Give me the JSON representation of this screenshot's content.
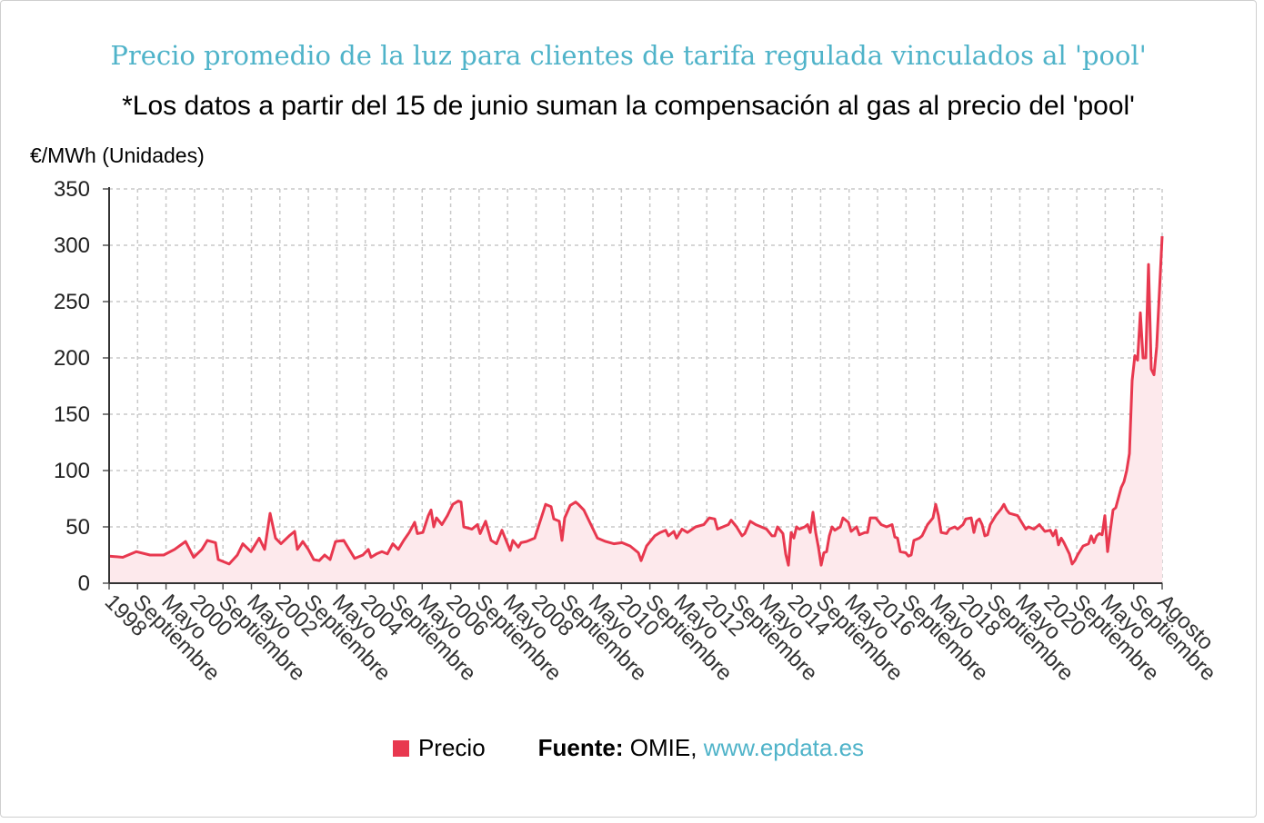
{
  "title": "Precio promedio de la luz para clientes de tarifa regulada vinculados al 'pool'",
  "subtitle": "*Los datos a partir del 15 de junio suman la compensación al gas al precio del 'pool'",
  "colors": {
    "line": "#e8384f",
    "area": "#fde9ec",
    "title": "#4fb3c9",
    "grid": "#c8c8c8"
  },
  "legend": {
    "series_label": "Precio",
    "source_label": "Fuente:",
    "source_name": "OMIE,",
    "source_url": "www.epdata.es"
  },
  "chart_data": {
    "type": "area",
    "title": "Precio promedio de la luz para clientes de tarifa regulada vinculados al 'pool'",
    "ylabel": "€/MWh (Unidades)",
    "ylim": [
      0,
      350
    ],
    "yticks": [
      0,
      50,
      100,
      150,
      200,
      250,
      300,
      350
    ],
    "grid": true,
    "legend_position": "bottom",
    "x_start": "1998-01",
    "x_end": "2022-08",
    "x_tick_labels": [
      "1998",
      "Septiembre",
      "Mayo",
      "2000",
      "Septiembre",
      "Mayo",
      "2002",
      "Septiembre",
      "Mayo",
      "2004",
      "Septiembre",
      "Mayo",
      "2006",
      "Septiembre",
      "Mayo",
      "2008",
      "Septiembre",
      "Mayo",
      "2010",
      "Septiembre",
      "Mayo",
      "2012",
      "Septiembre",
      "Mayo",
      "2014",
      "Septiembre",
      "Mayo",
      "2016",
      "Septiembre",
      "Mayo",
      "2018",
      "Septiembre",
      "Mayo",
      "2020",
      "Septiembre",
      "Mayo",
      "Septiembre",
      "Agosto"
    ],
    "series": [
      {
        "name": "Precio",
        "anchors": [
          [
            0,
            24
          ],
          [
            5,
            23
          ],
          [
            10,
            28
          ],
          [
            15,
            25
          ],
          [
            20,
            25
          ],
          [
            24,
            30
          ],
          [
            28,
            37
          ],
          [
            31,
            23
          ],
          [
            34,
            30
          ],
          [
            36,
            38
          ],
          [
            39,
            36
          ],
          [
            40,
            21
          ],
          [
            44,
            17
          ],
          [
            47,
            25
          ],
          [
            49,
            35
          ],
          [
            52,
            28
          ],
          [
            55,
            40
          ],
          [
            57,
            30
          ],
          [
            59,
            62
          ],
          [
            61,
            40
          ],
          [
            63,
            35
          ],
          [
            66,
            42
          ],
          [
            68,
            46
          ],
          [
            69,
            30
          ],
          [
            71,
            37
          ],
          [
            73,
            30
          ],
          [
            75,
            21
          ],
          [
            77,
            20
          ],
          [
            79,
            25
          ],
          [
            81,
            21
          ],
          [
            83,
            37
          ],
          [
            86,
            38
          ],
          [
            88,
            30
          ],
          [
            90,
            22
          ],
          [
            93,
            25
          ],
          [
            95,
            30
          ],
          [
            96,
            23
          ],
          [
            98,
            26
          ],
          [
            100,
            28
          ],
          [
            102,
            26
          ],
          [
            104,
            35
          ],
          [
            106,
            30
          ],
          [
            108,
            38
          ],
          [
            110,
            45
          ],
          [
            112,
            54
          ],
          [
            113,
            44
          ],
          [
            115,
            45
          ],
          [
            117,
            60
          ],
          [
            118,
            65
          ],
          [
            119,
            50
          ],
          [
            120,
            58
          ],
          [
            122,
            52
          ],
          [
            124,
            60
          ],
          [
            126,
            70
          ],
          [
            128,
            73
          ],
          [
            129,
            72
          ],
          [
            130,
            50
          ],
          [
            133,
            48
          ],
          [
            135,
            52
          ],
          [
            136,
            44
          ],
          [
            138,
            55
          ],
          [
            140,
            38
          ],
          [
            142,
            35
          ],
          [
            144,
            47
          ],
          [
            146,
            35
          ],
          [
            147,
            29
          ],
          [
            148,
            38
          ],
          [
            150,
            32
          ],
          [
            151,
            36
          ],
          [
            153,
            37
          ],
          [
            156,
            40
          ],
          [
            158,
            55
          ],
          [
            160,
            70
          ],
          [
            162,
            68
          ],
          [
            163,
            57
          ],
          [
            165,
            55
          ],
          [
            166,
            38
          ],
          [
            167,
            58
          ],
          [
            169,
            69
          ],
          [
            171,
            72
          ],
          [
            172,
            70
          ],
          [
            174,
            65
          ],
          [
            177,
            50
          ],
          [
            179,
            40
          ],
          [
            182,
            37
          ],
          [
            185,
            35
          ],
          [
            188,
            36
          ],
          [
            191,
            33
          ],
          [
            194,
            27
          ],
          [
            195,
            20
          ],
          [
            197,
            33
          ],
          [
            200,
            42
          ],
          [
            202,
            45
          ],
          [
            204,
            47
          ],
          [
            205,
            42
          ],
          [
            207,
            46
          ],
          [
            208,
            40
          ],
          [
            210,
            48
          ],
          [
            212,
            45
          ],
          [
            215,
            50
          ],
          [
            218,
            52
          ],
          [
            220,
            58
          ],
          [
            222,
            57
          ],
          [
            223,
            48
          ],
          [
            225,
            50
          ],
          [
            227,
            52
          ],
          [
            228,
            56
          ],
          [
            230,
            50
          ],
          [
            232,
            42
          ],
          [
            233,
            44
          ],
          [
            235,
            55
          ],
          [
            237,
            52
          ],
          [
            239,
            50
          ],
          [
            241,
            48
          ],
          [
            243,
            42
          ],
          [
            244,
            42
          ],
          [
            245,
            50
          ],
          [
            247,
            44
          ],
          [
            248,
            26
          ],
          [
            249,
            16
          ],
          [
            250,
            45
          ],
          [
            251,
            40
          ],
          [
            252,
            50
          ],
          [
            253,
            48
          ],
          [
            255,
            50
          ],
          [
            256,
            52
          ],
          [
            257,
            45
          ],
          [
            258,
            63
          ],
          [
            259,
            45
          ],
          [
            260,
            32
          ],
          [
            261,
            16
          ],
          [
            262,
            27
          ],
          [
            263,
            28
          ],
          [
            264,
            42
          ],
          [
            265,
            50
          ],
          [
            266,
            47
          ],
          [
            268,
            50
          ],
          [
            269,
            58
          ],
          [
            271,
            54
          ],
          [
            272,
            46
          ],
          [
            274,
            50
          ],
          [
            275,
            43
          ],
          [
            277,
            45
          ],
          [
            278,
            45
          ],
          [
            279,
            58
          ],
          [
            281,
            58
          ],
          [
            283,
            52
          ],
          [
            285,
            50
          ],
          [
            287,
            52
          ],
          [
            288,
            41
          ],
          [
            289,
            40
          ],
          [
            290,
            28
          ],
          [
            292,
            27
          ],
          [
            293,
            24
          ],
          [
            294,
            25
          ],
          [
            295,
            38
          ],
          [
            297,
            40
          ],
          [
            298,
            42
          ],
          [
            300,
            52
          ],
          [
            302,
            58
          ],
          [
            303,
            70
          ],
          [
            304,
            60
          ],
          [
            305,
            45
          ],
          [
            307,
            44
          ],
          [
            308,
            48
          ],
          [
            310,
            50
          ],
          [
            311,
            48
          ],
          [
            313,
            52
          ],
          [
            314,
            57
          ],
          [
            316,
            58
          ],
          [
            317,
            45
          ],
          [
            318,
            55
          ],
          [
            319,
            57
          ],
          [
            320,
            52
          ],
          [
            321,
            42
          ],
          [
            322,
            43
          ],
          [
            323,
            52
          ],
          [
            325,
            60
          ],
          [
            327,
            66
          ],
          [
            328,
            70
          ],
          [
            329,
            65
          ],
          [
            330,
            62
          ],
          [
            333,
            60
          ],
          [
            335,
            52
          ],
          [
            336,
            48
          ],
          [
            337,
            50
          ],
          [
            339,
            48
          ],
          [
            341,
            52
          ],
          [
            343,
            46
          ],
          [
            345,
            47
          ],
          [
            346,
            42
          ],
          [
            347,
            47
          ],
          [
            348,
            34
          ],
          [
            349,
            40
          ],
          [
            350,
            36
          ],
          [
            352,
            26
          ],
          [
            353,
            17
          ],
          [
            354,
            20
          ],
          [
            355,
            25
          ],
          [
            357,
            33
          ],
          [
            359,
            35
          ],
          [
            360,
            42
          ],
          [
            361,
            36
          ],
          [
            362,
            42
          ],
          [
            363,
            44
          ],
          [
            364,
            43
          ],
          [
            365,
            60
          ],
          [
            366,
            28
          ],
          [
            367,
            47
          ],
          [
            368,
            65
          ],
          [
            369,
            67
          ],
          [
            371,
            85
          ],
          [
            372,
            90
          ],
          [
            373,
            100
          ],
          [
            374,
            115
          ],
          [
            375,
            180
          ],
          [
            376,
            202
          ],
          [
            377,
            198
          ],
          [
            378,
            240
          ],
          [
            379,
            200
          ],
          [
            380,
            200
          ],
          [
            381,
            283
          ],
          [
            382,
            190
          ],
          [
            383,
            185
          ],
          [
            384,
            210
          ],
          [
            386,
            308
          ]
        ]
      }
    ]
  }
}
